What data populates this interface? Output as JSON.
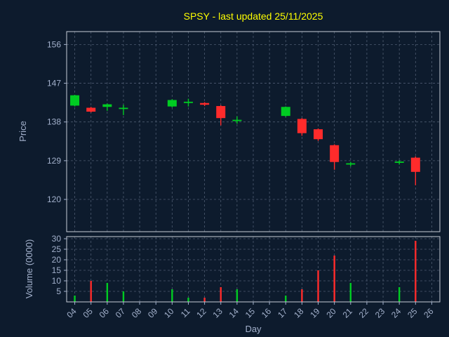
{
  "title": "SPSY - last updated 25/11/2025",
  "colors": {
    "page_background": "#0d1b2d",
    "panel_background": "#0d1b2d",
    "grid": "#4d5b70",
    "spine": "#c6ccd6",
    "tick": "#a3b1cc",
    "title": "#ffff00",
    "up": "#00cc22",
    "down": "#ff2b2b"
  },
  "chart_data": [
    {
      "type": "candlestick",
      "panel": "price",
      "ylabel": "Price",
      "ylim": [
        112.5,
        159
      ],
      "yticks": [
        120,
        129,
        138,
        147,
        156
      ],
      "xlim": [
        3.5,
        26.5
      ],
      "grid": true,
      "legend": false,
      "candles": [
        {
          "day": 4,
          "open": 141.8,
          "high": 144.3,
          "low": 141.6,
          "close": 144.2
        },
        {
          "day": 5,
          "open": 141.3,
          "high": 141.5,
          "low": 140.2,
          "close": 140.4
        },
        {
          "day": 6,
          "open": 141.5,
          "high": 142.3,
          "low": 140.6,
          "close": 142.1
        },
        {
          "day": 7,
          "open": 141.2,
          "high": 142.0,
          "low": 139.6,
          "close": 141.3
        },
        {
          "day": 10,
          "open": 141.6,
          "high": 143.3,
          "low": 141.4,
          "close": 143.1
        },
        {
          "day": 11,
          "open": 142.6,
          "high": 143.4,
          "low": 141.6,
          "close": 142.7
        },
        {
          "day": 12,
          "open": 142.4,
          "high": 142.6,
          "low": 141.7,
          "close": 142.0
        },
        {
          "day": 13,
          "open": 141.7,
          "high": 141.9,
          "low": 137.2,
          "close": 138.9
        },
        {
          "day": 14,
          "open": 138.3,
          "high": 139.3,
          "low": 137.6,
          "close": 138.5
        },
        {
          "day": 17,
          "open": 139.4,
          "high": 141.6,
          "low": 139.2,
          "close": 141.5
        },
        {
          "day": 18,
          "open": 138.7,
          "high": 138.9,
          "low": 134.8,
          "close": 135.4
        },
        {
          "day": 19,
          "open": 136.3,
          "high": 136.5,
          "low": 133.6,
          "close": 134.0
        },
        {
          "day": 20,
          "open": 132.6,
          "high": 132.8,
          "low": 126.9,
          "close": 128.7
        },
        {
          "day": 21,
          "open": 128.1,
          "high": 128.7,
          "low": 127.7,
          "close": 128.4
        },
        {
          "day": 24,
          "open": 128.5,
          "high": 129.1,
          "low": 128.1,
          "close": 128.8
        },
        {
          "day": 25,
          "open": 129.7,
          "high": 130.0,
          "low": 123.3,
          "close": 126.4
        }
      ]
    },
    {
      "type": "bar",
      "panel": "volume",
      "ylabel": "Volume (0000)",
      "xlabel": "Day",
      "ylim": [
        0,
        31
      ],
      "yticks": [
        5,
        10,
        15,
        20,
        25,
        30
      ],
      "xticks": [
        "04",
        "05",
        "06",
        "07",
        "08",
        "09",
        "10",
        "11",
        "12",
        "13",
        "14",
        "15",
        "16",
        "17",
        "18",
        "19",
        "20",
        "21",
        "22",
        "23",
        "24",
        "25",
        "26"
      ],
      "bars": [
        {
          "day": 4,
          "value": 3,
          "dir": "up"
        },
        {
          "day": 5,
          "value": 10,
          "dir": "down"
        },
        {
          "day": 6,
          "value": 9,
          "dir": "up"
        },
        {
          "day": 7,
          "value": 5,
          "dir": "up"
        },
        {
          "day": 10,
          "value": 6,
          "dir": "up"
        },
        {
          "day": 11,
          "value": 2,
          "dir": "up"
        },
        {
          "day": 12,
          "value": 2,
          "dir": "down"
        },
        {
          "day": 13,
          "value": 7,
          "dir": "down"
        },
        {
          "day": 14,
          "value": 6,
          "dir": "up"
        },
        {
          "day": 17,
          "value": 3,
          "dir": "up"
        },
        {
          "day": 18,
          "value": 6,
          "dir": "down"
        },
        {
          "day": 19,
          "value": 15,
          "dir": "down"
        },
        {
          "day": 20,
          "value": 22,
          "dir": "down"
        },
        {
          "day": 21,
          "value": 9,
          "dir": "up"
        },
        {
          "day": 24,
          "value": 7,
          "dir": "up"
        },
        {
          "day": 25,
          "value": 29,
          "dir": "down"
        }
      ]
    }
  ]
}
